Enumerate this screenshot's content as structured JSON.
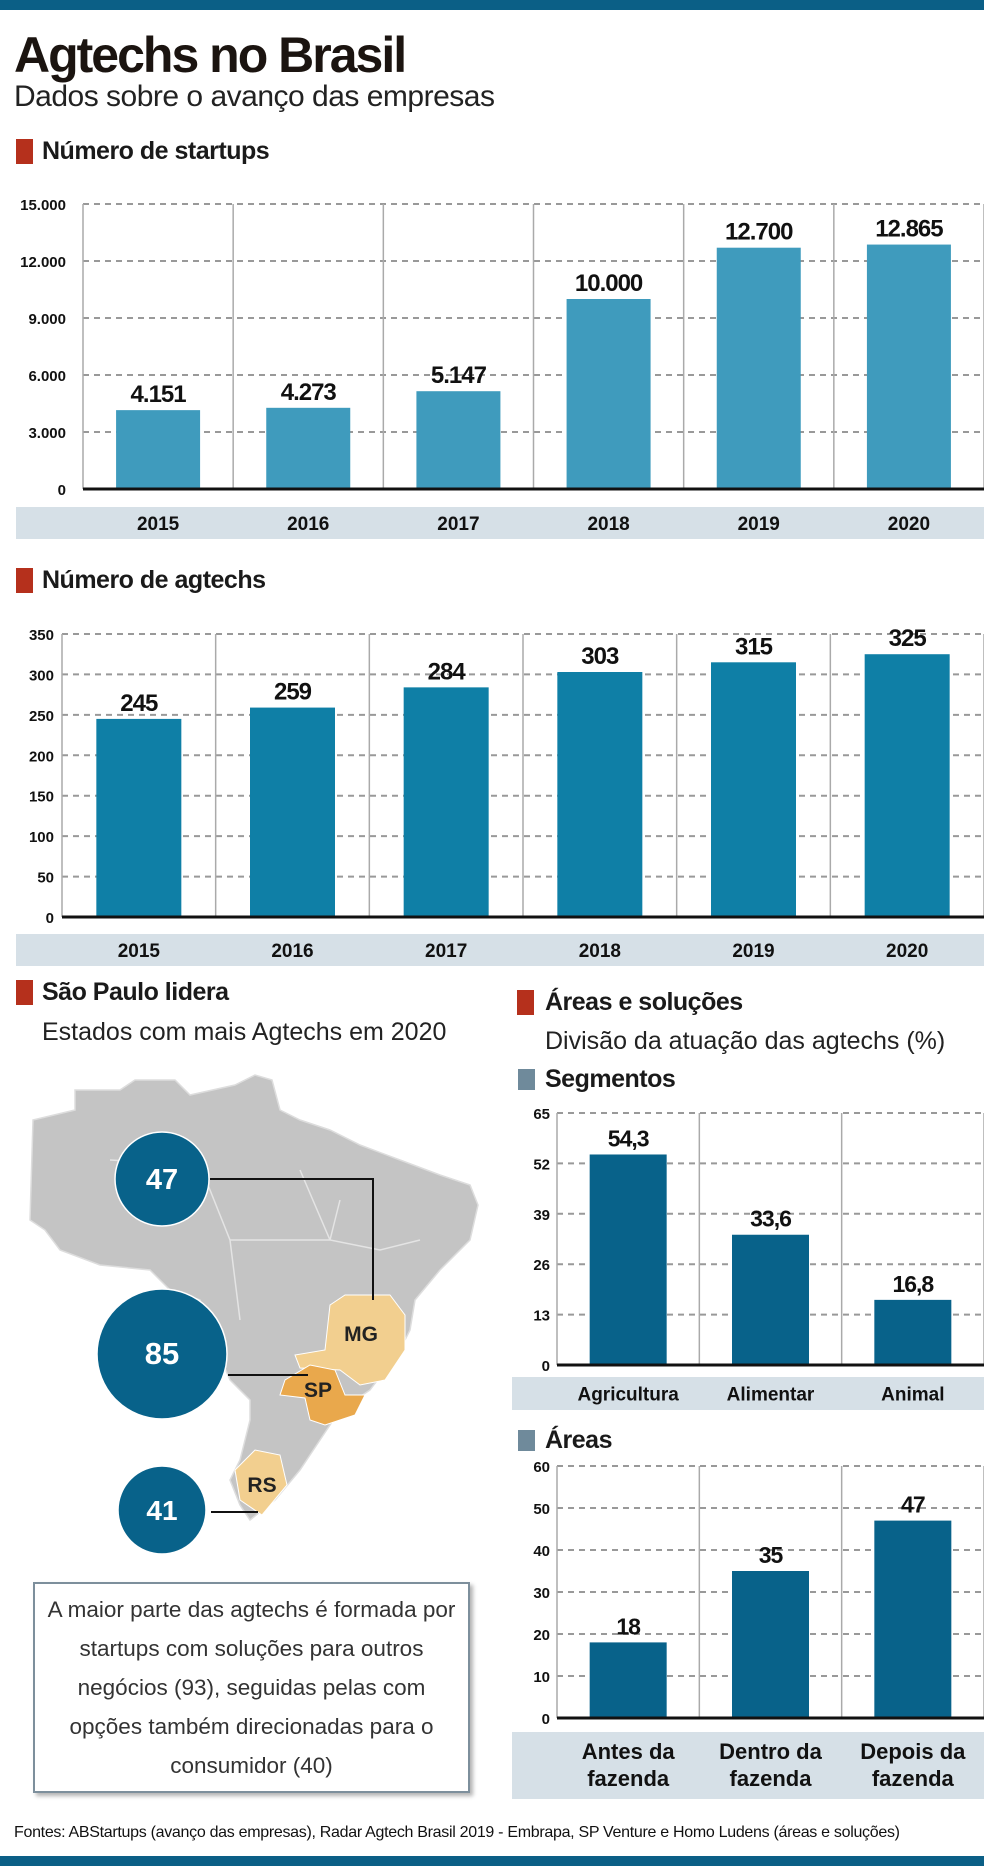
{
  "header": {
    "title": "Agtechs no Brasil",
    "subtitle": "Dados sobre o avanço das empresas"
  },
  "colors": {
    "top_bar": "#0b5f86",
    "section_marker": "#b5301c",
    "subsection_marker": "#6f8a9b",
    "startups_bar": "#3f9bbd",
    "agtechs_bar": "#0f7fa6",
    "areas_bar": "#08628a",
    "category_band": "#d6e0e7",
    "bubble": "#08628a",
    "map_base": "#c4c4c4",
    "map_highlight_light": "#f2cf8f",
    "map_highlight_dark": "#e9a84c"
  },
  "sections": {
    "startups": "Número de startups",
    "agtechs": "Número de agtechs",
    "sp": "São Paulo lidera",
    "sp_subtitle": "Estados com mais Agtechs em 2020",
    "areas": "Áreas e soluções",
    "areas_subtitle": "Divisão da atuação das agtechs (%)",
    "segmentos": "Segmentos",
    "areas_sub": "Áreas"
  },
  "map": {
    "states": [
      {
        "label": "MG",
        "value": "47"
      },
      {
        "label": "SP",
        "value": "85"
      },
      {
        "label": "RS",
        "value": "41"
      }
    ]
  },
  "note": "A maior parte das agtechs é formada por startups com soluções para outros negócios (93), seguidas pelas com opções também direcionadas para o consumidor (40)",
  "sources": "Fontes: ABStartups (avanço das empresas), Radar Agtech Brasil 2019 - Embrapa, SP Venture e Homo Ludens (áreas e soluções)",
  "chart_data": [
    {
      "type": "bar",
      "title": "Número de startups",
      "categories": [
        "2015",
        "2016",
        "2017",
        "2018",
        "2019",
        "2020"
      ],
      "values": [
        4151,
        4273,
        5147,
        10000,
        12700,
        12865
      ],
      "value_labels": [
        "4.151",
        "4.273",
        "5.147",
        "10.000",
        "12.700",
        "12.865"
      ],
      "ylim": [
        0,
        15000
      ],
      "yticks": [
        0,
        3000,
        6000,
        9000,
        12000,
        15000
      ],
      "ytick_labels": [
        "0",
        "3.000",
        "6.000",
        "9.000",
        "12.000",
        "15.000"
      ],
      "grid": true
    },
    {
      "type": "bar",
      "title": "Número de agtechs",
      "categories": [
        "2015",
        "2016",
        "2017",
        "2018",
        "2019",
        "2020"
      ],
      "values": [
        245,
        259,
        284,
        303,
        315,
        325
      ],
      "value_labels": [
        "245",
        "259",
        "284",
        "303",
        "315",
        "325"
      ],
      "ylim": [
        0,
        350
      ],
      "yticks": [
        0,
        50,
        100,
        150,
        200,
        250,
        300,
        350
      ],
      "ytick_labels": [
        "0",
        "50",
        "100",
        "150",
        "200",
        "250",
        "300",
        "350"
      ],
      "grid": true
    },
    {
      "type": "bar",
      "title": "Segmentos",
      "categories": [
        "Agricultura",
        "Alimentar",
        "Animal"
      ],
      "values": [
        54.3,
        33.6,
        16.8
      ],
      "value_labels": [
        "54,3",
        "33,6",
        "16,8"
      ],
      "ylim": [
        0,
        65
      ],
      "yticks": [
        0,
        13,
        26,
        39,
        52,
        65
      ],
      "ytick_labels": [
        "0",
        "13",
        "26",
        "39",
        "52",
        "65"
      ],
      "grid": true
    },
    {
      "type": "bar",
      "title": "Áreas",
      "categories": [
        "Antes da|fazenda",
        "Dentro da|fazenda",
        "Depois da|fazenda"
      ],
      "values": [
        18,
        35,
        47
      ],
      "value_labels": [
        "18",
        "35",
        "47"
      ],
      "ylim": [
        0,
        60
      ],
      "yticks": [
        0,
        10,
        20,
        30,
        40,
        50,
        60
      ],
      "ytick_labels": [
        "0",
        "10",
        "20",
        "30",
        "40",
        "50",
        "60"
      ],
      "grid": true
    }
  ]
}
